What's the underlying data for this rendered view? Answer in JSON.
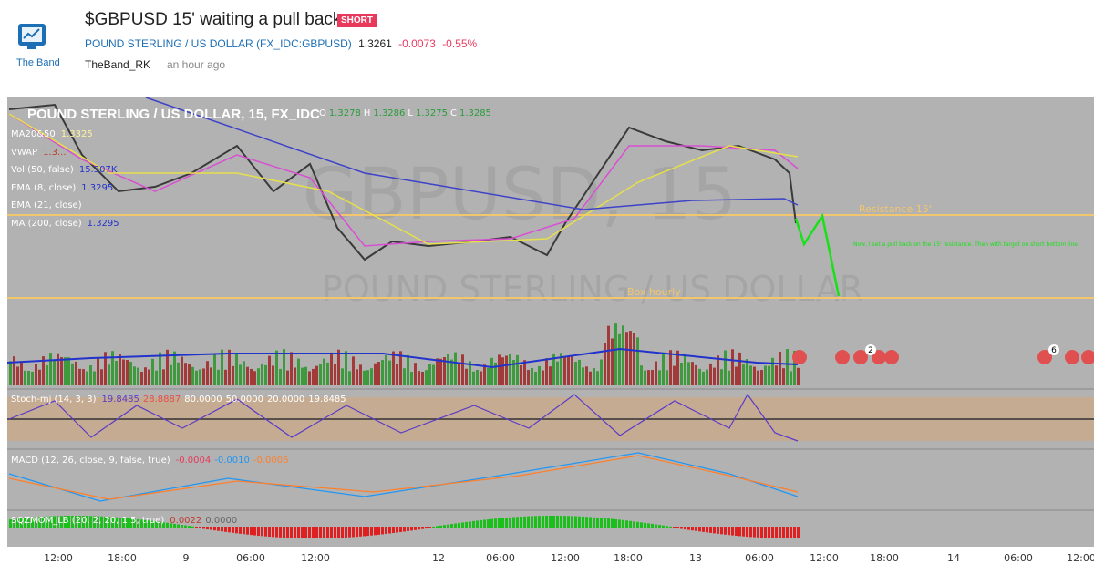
{
  "header": {
    "logo_text": "The Band",
    "title": "$GBPUSD 15' waiting a pull back",
    "badge": "SHORT",
    "symbol_name": "POUND STERLING / US DOLLAR",
    "symbol_code": "(FX_IDC:GBPUSD)",
    "price": "1.3261",
    "change": "-0.0073",
    "change_pct": "-0.55%",
    "author": "TheBand_RK",
    "time": "an hour ago"
  },
  "chart": {
    "legend_title": "POUND STERLING / US DOLLAR, 15, FX_IDC",
    "ohlc": [
      {
        "label": "O",
        "value": "1.3278"
      },
      {
        "label": "H",
        "value": "1.3286"
      },
      {
        "label": "L",
        "value": "1.3275"
      },
      {
        "label": "C",
        "value": "1.3285"
      }
    ],
    "indicators": [
      {
        "name": "MA20&50",
        "values": [
          "1.3325"
        ]
      },
      {
        "name": "VWAP",
        "values": [
          "1.3..."
        ]
      },
      {
        "name": "Vol (50, false)",
        "values": [
          "15.307K"
        ]
      },
      {
        "name": "EMA (8, close)",
        "values": [
          "1.3295"
        ]
      },
      {
        "name": "EMA (21, close)",
        "values": []
      },
      {
        "name": "MA (200, close)",
        "values": [
          "1.3295"
        ]
      }
    ],
    "watermark": [
      "GBPUSD, 15",
      "POUND STERLING / US DOLLAR"
    ],
    "annotations": {
      "resistance": "Resistance 15'",
      "box": "Box hourly",
      "note": "Now, I set a pull back on the 15' resistance. Then with target on short bottom line."
    },
    "event_badges": [
      "2",
      "6"
    ],
    "panes": [
      {
        "name": "Stoch-mj (14, 3, 3)",
        "values": [
          "19.8485",
          "28.8887",
          "80.0000",
          "50.0000",
          "20.0000",
          "19.8485"
        ]
      },
      {
        "name": "MACD (12, 26, close, 9, false, true)",
        "values": [
          "-0.0004",
          "-0.0010",
          "-0.0006"
        ]
      },
      {
        "name": "SQZMOM_LB (20, 2, 20, 1.5, true)",
        "values": [
          "0.0022",
          "0.0000"
        ]
      }
    ],
    "x_labels": [
      "12:00",
      "18:00",
      "9",
      "06:00",
      "12:00",
      "12",
      "06:00",
      "12:00",
      "18:00",
      "13",
      "06:00",
      "12:00",
      "18:00",
      "14",
      "06:00",
      "12:00"
    ]
  }
}
